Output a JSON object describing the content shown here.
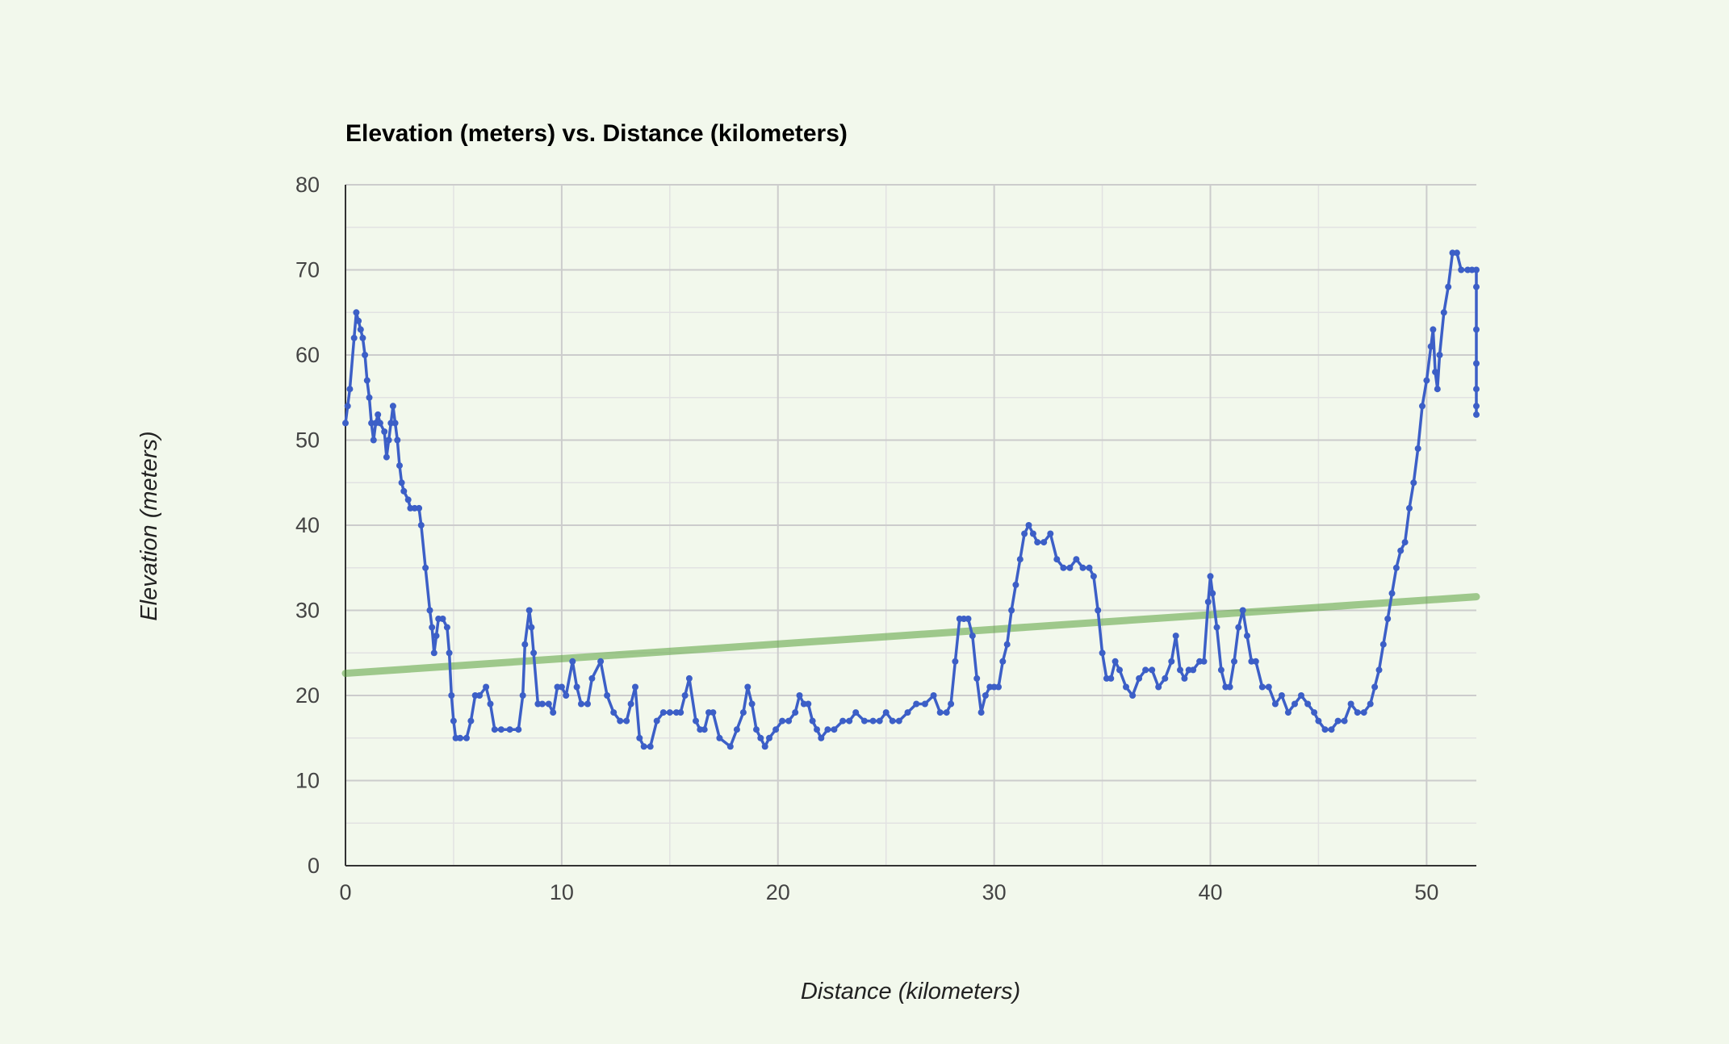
{
  "chart_data": {
    "type": "scatter",
    "title": "Elevation (meters) vs. Distance (kilometers)",
    "xlabel": "Distance (kilometers)",
    "ylabel": "Elevation (meters)",
    "xlim": [
      0,
      52.3
    ],
    "ylim": [
      0,
      80
    ],
    "x_ticks": [
      0,
      10,
      20,
      30,
      40,
      50
    ],
    "y_ticks": [
      0,
      10,
      20,
      30,
      40,
      50,
      60,
      70,
      80
    ],
    "grid": true,
    "minor_grid": true,
    "legend": "none",
    "colors": {
      "series": "#3c5fc7",
      "trendline": "#5aa03c",
      "grid_major": "#cccccc",
      "grid_minor": "#e2e2e2",
      "background": "#f2f8ec"
    },
    "series": [
      {
        "style": "line-with-points",
        "points": [
          [
            0,
            52
          ],
          [
            0.1,
            54
          ],
          [
            0.2,
            56
          ],
          [
            0.4,
            62
          ],
          [
            0.5,
            65
          ],
          [
            0.6,
            64
          ],
          [
            0.7,
            63
          ],
          [
            0.8,
            62
          ],
          [
            0.9,
            60
          ],
          [
            1.0,
            57
          ],
          [
            1.1,
            55
          ],
          [
            1.2,
            52
          ],
          [
            1.3,
            50
          ],
          [
            1.4,
            52
          ],
          [
            1.5,
            53
          ],
          [
            1.6,
            52
          ],
          [
            1.8,
            51
          ],
          [
            1.9,
            48
          ],
          [
            2.0,
            50
          ],
          [
            2.1,
            52
          ],
          [
            2.2,
            54
          ],
          [
            2.3,
            52
          ],
          [
            2.4,
            50
          ],
          [
            2.5,
            47
          ],
          [
            2.6,
            45
          ],
          [
            2.7,
            44
          ],
          [
            2.9,
            43
          ],
          [
            3.0,
            42
          ],
          [
            3.2,
            42
          ],
          [
            3.4,
            42
          ],
          [
            3.5,
            40
          ],
          [
            3.7,
            35
          ],
          [
            3.9,
            30
          ],
          [
            4.0,
            28
          ],
          [
            4.1,
            25
          ],
          [
            4.2,
            27
          ],
          [
            4.3,
            29
          ],
          [
            4.5,
            29
          ],
          [
            4.7,
            28
          ],
          [
            4.8,
            25
          ],
          [
            4.9,
            20
          ],
          [
            5.0,
            17
          ],
          [
            5.1,
            15
          ],
          [
            5.3,
            15
          ],
          [
            5.6,
            15
          ],
          [
            5.8,
            17
          ],
          [
            6.0,
            20
          ],
          [
            6.2,
            20
          ],
          [
            6.5,
            21
          ],
          [
            6.7,
            19
          ],
          [
            6.9,
            16
          ],
          [
            7.2,
            16
          ],
          [
            7.6,
            16
          ],
          [
            8.0,
            16
          ],
          [
            8.2,
            20
          ],
          [
            8.3,
            26
          ],
          [
            8.5,
            30
          ],
          [
            8.6,
            28
          ],
          [
            8.7,
            25
          ],
          [
            8.9,
            19
          ],
          [
            9.1,
            19
          ],
          [
            9.4,
            19
          ],
          [
            9.6,
            18
          ],
          [
            9.8,
            21
          ],
          [
            10.0,
            21
          ],
          [
            10.2,
            20
          ],
          [
            10.5,
            24
          ],
          [
            10.7,
            21
          ],
          [
            10.9,
            19
          ],
          [
            11.2,
            19
          ],
          [
            11.4,
            22
          ],
          [
            11.8,
            24
          ],
          [
            12.1,
            20
          ],
          [
            12.4,
            18
          ],
          [
            12.7,
            17
          ],
          [
            13.0,
            17
          ],
          [
            13.2,
            19
          ],
          [
            13.4,
            21
          ],
          [
            13.6,
            15
          ],
          [
            13.8,
            14
          ],
          [
            14.1,
            14
          ],
          [
            14.4,
            17
          ],
          [
            14.7,
            18
          ],
          [
            15.0,
            18
          ],
          [
            15.3,
            18
          ],
          [
            15.5,
            18
          ],
          [
            15.7,
            20
          ],
          [
            15.9,
            22
          ],
          [
            16.2,
            17
          ],
          [
            16.4,
            16
          ],
          [
            16.6,
            16
          ],
          [
            16.8,
            18
          ],
          [
            17.0,
            18
          ],
          [
            17.3,
            15
          ],
          [
            17.8,
            14
          ],
          [
            18.1,
            16
          ],
          [
            18.4,
            18
          ],
          [
            18.6,
            21
          ],
          [
            18.8,
            19
          ],
          [
            19.0,
            16
          ],
          [
            19.2,
            15
          ],
          [
            19.4,
            14
          ],
          [
            19.6,
            15
          ],
          [
            19.9,
            16
          ],
          [
            20.2,
            17
          ],
          [
            20.5,
            17
          ],
          [
            20.8,
            18
          ],
          [
            21.0,
            20
          ],
          [
            21.2,
            19
          ],
          [
            21.4,
            19
          ],
          [
            21.6,
            17
          ],
          [
            21.8,
            16
          ],
          [
            22.0,
            15
          ],
          [
            22.3,
            16
          ],
          [
            22.6,
            16
          ],
          [
            23.0,
            17
          ],
          [
            23.3,
            17
          ],
          [
            23.6,
            18
          ],
          [
            24.0,
            17
          ],
          [
            24.4,
            17
          ],
          [
            24.7,
            17
          ],
          [
            25.0,
            18
          ],
          [
            25.3,
            17
          ],
          [
            25.6,
            17
          ],
          [
            26.0,
            18
          ],
          [
            26.4,
            19
          ],
          [
            26.8,
            19
          ],
          [
            27.2,
            20
          ],
          [
            27.5,
            18
          ],
          [
            27.8,
            18
          ],
          [
            28.0,
            19
          ],
          [
            28.2,
            24
          ],
          [
            28.4,
            29
          ],
          [
            28.6,
            29
          ],
          [
            28.8,
            29
          ],
          [
            29.0,
            27
          ],
          [
            29.2,
            22
          ],
          [
            29.4,
            18
          ],
          [
            29.6,
            20
          ],
          [
            29.8,
            21
          ],
          [
            30.0,
            21
          ],
          [
            30.2,
            21
          ],
          [
            30.4,
            24
          ],
          [
            30.6,
            26
          ],
          [
            30.8,
            30
          ],
          [
            31.0,
            33
          ],
          [
            31.2,
            36
          ],
          [
            31.4,
            39
          ],
          [
            31.6,
            40
          ],
          [
            31.8,
            39
          ],
          [
            32.0,
            38
          ],
          [
            32.3,
            38
          ],
          [
            32.6,
            39
          ],
          [
            32.9,
            36
          ],
          [
            33.2,
            35
          ],
          [
            33.5,
            35
          ],
          [
            33.8,
            36
          ],
          [
            34.1,
            35
          ],
          [
            34.4,
            35
          ],
          [
            34.6,
            34
          ],
          [
            34.8,
            30
          ],
          [
            35.0,
            25
          ],
          [
            35.2,
            22
          ],
          [
            35.4,
            22
          ],
          [
            35.6,
            24
          ],
          [
            35.8,
            23
          ],
          [
            36.1,
            21
          ],
          [
            36.4,
            20
          ],
          [
            36.7,
            22
          ],
          [
            37.0,
            23
          ],
          [
            37.3,
            23
          ],
          [
            37.6,
            21
          ],
          [
            37.9,
            22
          ],
          [
            38.2,
            24
          ],
          [
            38.4,
            27
          ],
          [
            38.6,
            23
          ],
          [
            38.8,
            22
          ],
          [
            39.0,
            23
          ],
          [
            39.2,
            23
          ],
          [
            39.5,
            24
          ],
          [
            39.7,
            24
          ],
          [
            39.9,
            31
          ],
          [
            40.0,
            34
          ],
          [
            40.1,
            32
          ],
          [
            40.3,
            28
          ],
          [
            40.5,
            23
          ],
          [
            40.7,
            21
          ],
          [
            40.9,
            21
          ],
          [
            41.1,
            24
          ],
          [
            41.3,
            28
          ],
          [
            41.5,
            30
          ],
          [
            41.7,
            27
          ],
          [
            41.9,
            24
          ],
          [
            42.1,
            24
          ],
          [
            42.4,
            21
          ],
          [
            42.7,
            21
          ],
          [
            43.0,
            19
          ],
          [
            43.3,
            20
          ],
          [
            43.6,
            18
          ],
          [
            43.9,
            19
          ],
          [
            44.2,
            20
          ],
          [
            44.5,
            19
          ],
          [
            44.8,
            18
          ],
          [
            45.0,
            17
          ],
          [
            45.3,
            16
          ],
          [
            45.6,
            16
          ],
          [
            45.9,
            17
          ],
          [
            46.2,
            17
          ],
          [
            46.5,
            19
          ],
          [
            46.8,
            18
          ],
          [
            47.1,
            18
          ],
          [
            47.4,
            19
          ],
          [
            47.6,
            21
          ],
          [
            47.8,
            23
          ],
          [
            48.0,
            26
          ],
          [
            48.2,
            29
          ],
          [
            48.4,
            32
          ],
          [
            48.6,
            35
          ],
          [
            48.8,
            37
          ],
          [
            49.0,
            38
          ],
          [
            49.2,
            42
          ],
          [
            49.4,
            45
          ],
          [
            49.6,
            49
          ],
          [
            49.8,
            54
          ],
          [
            50.0,
            57
          ],
          [
            50.2,
            61
          ],
          [
            50.3,
            63
          ],
          [
            50.4,
            58
          ],
          [
            50.5,
            56
          ],
          [
            50.6,
            60
          ],
          [
            50.8,
            65
          ],
          [
            51.0,
            68
          ],
          [
            51.2,
            72
          ],
          [
            51.4,
            72
          ],
          [
            51.6,
            70
          ],
          [
            51.9,
            70
          ],
          [
            52.1,
            70
          ],
          [
            52.4,
            70
          ],
          [
            52.6,
            68
          ],
          [
            52.8,
            63
          ],
          [
            53.0,
            59
          ],
          [
            53.2,
            56
          ],
          [
            53.4,
            54
          ],
          [
            53.6,
            53
          ]
        ]
      }
    ],
    "trendline": {
      "type": "linear",
      "points": [
        [
          0,
          22.6
        ],
        [
          52.3,
          31.6
        ]
      ]
    }
  }
}
